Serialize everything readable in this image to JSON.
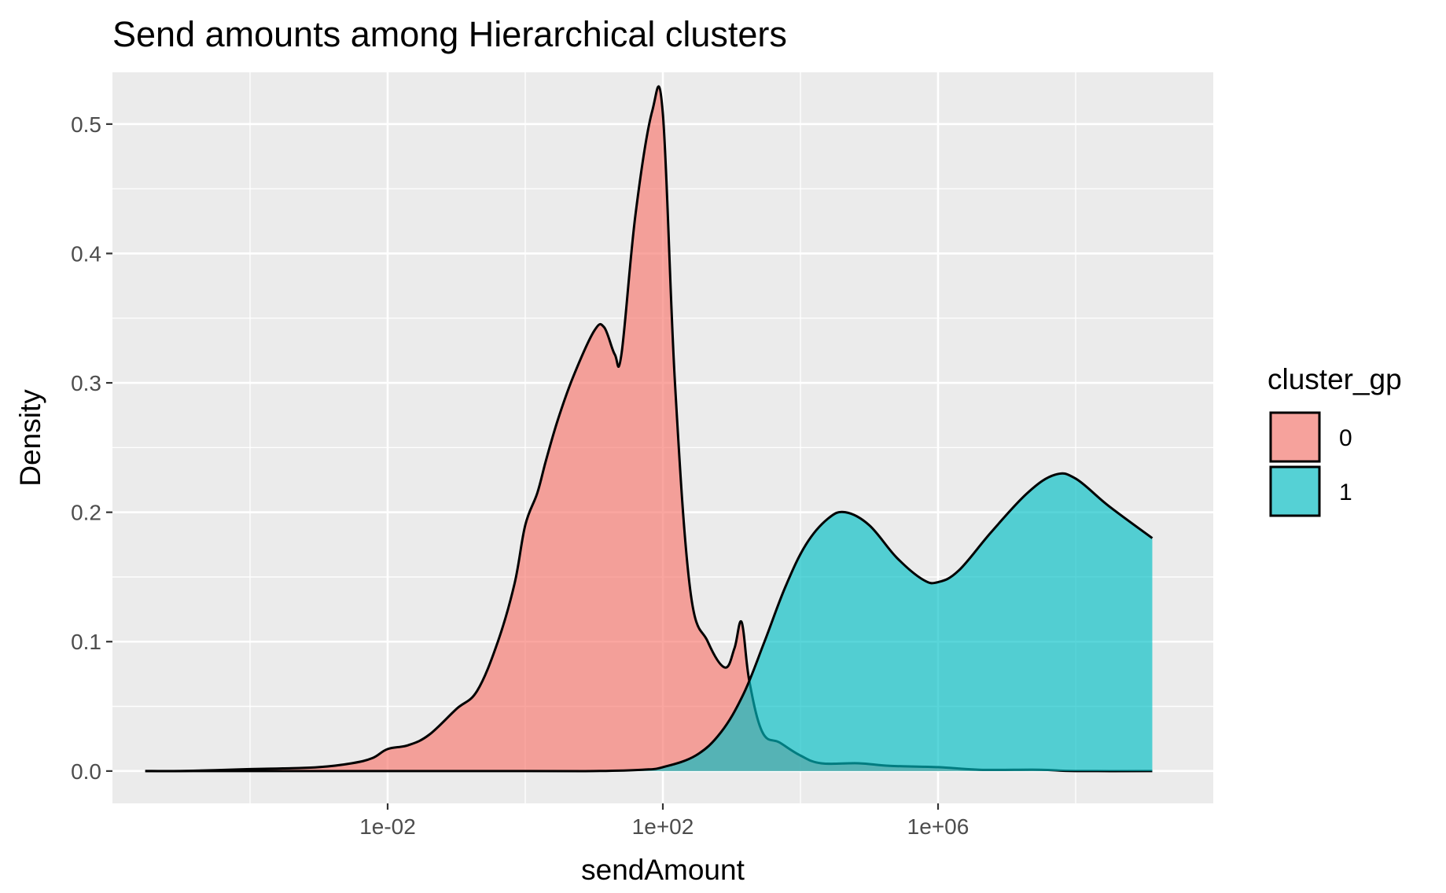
{
  "chart_data": {
    "type": "area",
    "title": "Send amounts among Hierarchical clusters",
    "xlabel": "sendAmount",
    "ylabel": "Density",
    "x_scale": "log10",
    "xlim": [
      1e-06,
      10000000000.0
    ],
    "ylim": [
      -0.025,
      0.54
    ],
    "x_ticks": [
      0.01,
      100,
      1000000
    ],
    "x_tick_labels": [
      "1e-02",
      "1e+02",
      "1e+06"
    ],
    "y_ticks": [
      0.0,
      0.1,
      0.2,
      0.3,
      0.4,
      0.5
    ],
    "y_tick_labels": [
      "0.0",
      "0.1",
      "0.2",
      "0.3",
      "0.4",
      "0.5"
    ],
    "grid": true,
    "legend": {
      "title": "cluster_gp",
      "position": "right"
    },
    "series": [
      {
        "name": "0",
        "color": "#F8766D",
        "points": [
          [
            3e-06,
            0.0
          ],
          [
            1e-05,
            0.0
          ],
          [
            0.0001,
            0.0015
          ],
          [
            0.0003,
            0.002
          ],
          [
            0.001,
            0.003
          ],
          [
            0.003,
            0.006
          ],
          [
            0.006,
            0.01
          ],
          [
            0.01,
            0.017
          ],
          [
            0.02,
            0.02
          ],
          [
            0.04,
            0.028
          ],
          [
            0.1,
            0.048
          ],
          [
            0.2,
            0.062
          ],
          [
            0.4,
            0.1
          ],
          [
            0.7,
            0.145
          ],
          [
            1.0,
            0.19
          ],
          [
            1.5,
            0.215
          ],
          [
            2.0,
            0.24
          ],
          [
            3.0,
            0.272
          ],
          [
            5.0,
            0.305
          ],
          [
            10.0,
            0.34
          ],
          [
            14.0,
            0.343
          ],
          [
            20.0,
            0.322
          ],
          [
            25.0,
            0.322
          ],
          [
            40.0,
            0.43
          ],
          [
            70.0,
            0.51
          ],
          [
            100.0,
            0.508
          ],
          [
            150.0,
            0.3
          ],
          [
            250.0,
            0.14
          ],
          [
            450.0,
            0.1
          ],
          [
            800.0,
            0.08
          ],
          [
            1100.0,
            0.095
          ],
          [
            1400.0,
            0.115
          ],
          [
            1800.0,
            0.07
          ],
          [
            2800.0,
            0.03
          ],
          [
            5000.0,
            0.022
          ],
          [
            10000.0,
            0.012
          ],
          [
            20000.0,
            0.006
          ],
          [
            70000.0,
            0.006
          ],
          [
            200000.0,
            0.004
          ],
          [
            1000000.0,
            0.003
          ],
          [
            4000000.0,
            0.001
          ],
          [
            30000000.0,
            0.001
          ],
          [
            100000000.0,
            0.0
          ],
          [
            1300000000.0,
            0.0
          ]
        ]
      },
      {
        "name": "1",
        "color": "#00BFC4",
        "points": [
          [
            3e-06,
            0.0
          ],
          [
            1.0,
            0.0
          ],
          [
            10.0,
            0.0
          ],
          [
            50.0,
            0.001
          ],
          [
            100.0,
            0.003
          ],
          [
            300.0,
            0.012
          ],
          [
            700.0,
            0.03
          ],
          [
            1500.0,
            0.06
          ],
          [
            3000.0,
            0.1
          ],
          [
            6000.0,
            0.142
          ],
          [
            12000.0,
            0.175
          ],
          [
            25000.0,
            0.195
          ],
          [
            45000.0,
            0.2
          ],
          [
            100000.0,
            0.19
          ],
          [
            250000.0,
            0.165
          ],
          [
            600000.0,
            0.148
          ],
          [
            1000000.0,
            0.146
          ],
          [
            2000000.0,
            0.155
          ],
          [
            6000000.0,
            0.185
          ],
          [
            20000000.0,
            0.215
          ],
          [
            50000000.0,
            0.229
          ],
          [
            100000000.0,
            0.226
          ],
          [
            300000000.0,
            0.205
          ],
          [
            1300000000.0,
            0.18
          ]
        ]
      }
    ]
  }
}
